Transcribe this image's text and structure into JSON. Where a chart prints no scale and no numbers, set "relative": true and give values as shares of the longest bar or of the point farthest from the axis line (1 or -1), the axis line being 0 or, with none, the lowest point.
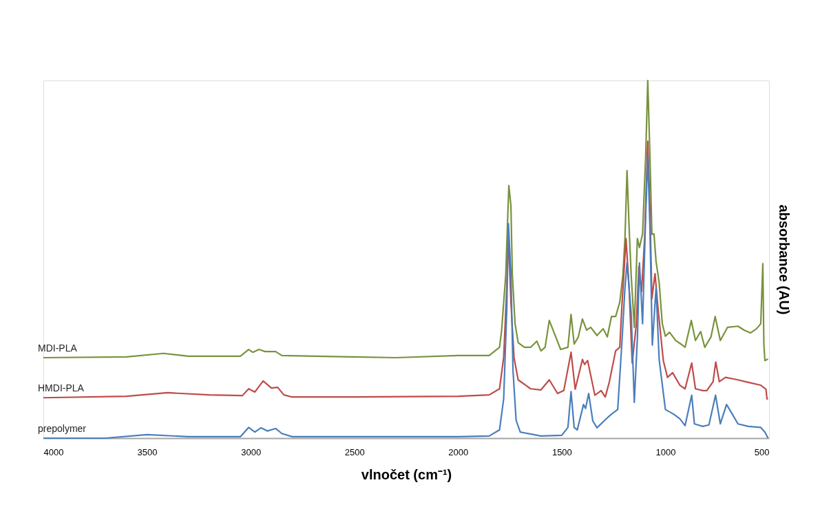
{
  "chart_data": {
    "type": "line",
    "relative": true,
    "xlabel": "vlnočet (cm⁻¹)",
    "ylabel": "absorbance (AU)",
    "xlim": [
      4000,
      500
    ],
    "xticks": [
      4000,
      3500,
      3000,
      2500,
      2000,
      1500,
      1000,
      500
    ],
    "grid": false,
    "line_style": "solid",
    "marker": "none",
    "series": [
      {
        "name": "MDI-PLA",
        "color": "#77933c",
        "x": [
          4000,
          3600,
          3420,
          3300,
          3050,
          3010,
          2990,
          2960,
          2930,
          2880,
          2850,
          2500,
          2300,
          2000,
          1850,
          1800,
          1790,
          1770,
          1760,
          1755,
          1745,
          1738,
          1725,
          1710,
          1680,
          1650,
          1620,
          1600,
          1580,
          1560,
          1530,
          1505,
          1470,
          1455,
          1440,
          1420,
          1400,
          1380,
          1360,
          1330,
          1300,
          1280,
          1260,
          1240,
          1220,
          1205,
          1195,
          1185,
          1175,
          1165,
          1150,
          1135,
          1125,
          1110,
          1095,
          1085,
          1075,
          1065,
          1055,
          1045,
          1030,
          1015,
          1000,
          980,
          950,
          925,
          905,
          875,
          855,
          830,
          810,
          780,
          760,
          735,
          700,
          650,
          620,
          590,
          560,
          540,
          530,
          525,
          520,
          505
        ],
        "values": [
          0.225,
          0.227,
          0.237,
          0.229,
          0.229,
          0.248,
          0.24,
          0.248,
          0.242,
          0.242,
          0.231,
          0.227,
          0.225,
          0.231,
          0.231,
          0.254,
          0.3,
          0.456,
          0.625,
          0.706,
          0.65,
          0.456,
          0.32,
          0.267,
          0.254,
          0.254,
          0.271,
          0.244,
          0.254,
          0.329,
          0.285,
          0.248,
          0.254,
          0.346,
          0.263,
          0.283,
          0.333,
          0.302,
          0.31,
          0.287,
          0.306,
          0.283,
          0.34,
          0.34,
          0.38,
          0.456,
          0.558,
          0.748,
          0.59,
          0.456,
          0.31,
          0.558,
          0.533,
          0.571,
          0.79,
          1.0,
          0.8,
          0.57,
          0.571,
          0.494,
          0.435,
          0.32,
          0.285,
          0.296,
          0.273,
          0.263,
          0.254,
          0.329,
          0.273,
          0.298,
          0.254,
          0.283,
          0.34,
          0.273,
          0.31,
          0.313,
          0.302,
          0.294,
          0.306,
          0.32,
          0.488,
          0.263,
          0.217,
          0.221
        ]
      },
      {
        "name": "HMDI-PLA",
        "color": "#be4b48",
        "x": [
          4000,
          3600,
          3400,
          3200,
          3040,
          3010,
          2980,
          2940,
          2900,
          2870,
          2840,
          2800,
          2500,
          2000,
          1850,
          1800,
          1780,
          1765,
          1757,
          1745,
          1730,
          1710,
          1650,
          1600,
          1560,
          1520,
          1490,
          1455,
          1435,
          1400,
          1390,
          1375,
          1340,
          1310,
          1290,
          1270,
          1240,
          1220,
          1210,
          1190,
          1175,
          1160,
          1140,
          1128,
          1115,
          1100,
          1085,
          1075,
          1065,
          1050,
          1035,
          1010,
          990,
          965,
          930,
          905,
          873,
          855,
          820,
          800,
          770,
          757,
          740,
          710,
          650,
          600,
          540,
          515,
          510,
          505
        ],
        "values": [
          0.113,
          0.117,
          0.127,
          0.121,
          0.119,
          0.138,
          0.129,
          0.16,
          0.14,
          0.142,
          0.121,
          0.115,
          0.115,
          0.117,
          0.121,
          0.138,
          0.225,
          0.42,
          0.57,
          0.38,
          0.225,
          0.163,
          0.138,
          0.135,
          0.163,
          0.125,
          0.133,
          0.24,
          0.137,
          0.22,
          0.206,
          0.217,
          0.12,
          0.133,
          0.115,
          0.158,
          0.244,
          0.254,
          0.367,
          0.558,
          0.42,
          0.21,
          0.32,
          0.48,
          0.41,
          0.56,
          0.83,
          0.65,
          0.39,
          0.46,
          0.36,
          0.217,
          0.17,
          0.183,
          0.148,
          0.138,
          0.21,
          0.138,
          0.133,
          0.133,
          0.158,
          0.213,
          0.158,
          0.17,
          0.163,
          0.156,
          0.148,
          0.137,
          0.11,
          0.11
        ]
      },
      {
        "name": "prepolymer",
        "color": "#4a7ebb",
        "x": [
          4000,
          3700,
          3500,
          3300,
          3050,
          3010,
          2980,
          2950,
          2920,
          2880,
          2850,
          2800,
          2500,
          2000,
          1850,
          1800,
          1780,
          1765,
          1757,
          1745,
          1735,
          1720,
          1700,
          1600,
          1500,
          1470,
          1455,
          1440,
          1425,
          1395,
          1385,
          1370,
          1350,
          1330,
          1274,
          1260,
          1230,
          1210,
          1195,
          1185,
          1165,
          1150,
          1135,
          1125,
          1110,
          1095,
          1085,
          1075,
          1063,
          1045,
          1030,
          1000,
          960,
          930,
          905,
          873,
          860,
          820,
          790,
          758,
          735,
          705,
          680,
          650,
          600,
          540,
          520,
          505
        ],
        "values": [
          0.0,
          0.0,
          0.01,
          0.004,
          0.004,
          0.03,
          0.017,
          0.029,
          0.02,
          0.027,
          0.013,
          0.004,
          0.004,
          0.004,
          0.006,
          0.023,
          0.11,
          0.36,
          0.6,
          0.46,
          0.19,
          0.05,
          0.017,
          0.006,
          0.008,
          0.03,
          0.13,
          0.03,
          0.023,
          0.094,
          0.083,
          0.125,
          0.048,
          0.029,
          0.06,
          0.067,
          0.08,
          0.265,
          0.42,
          0.49,
          0.35,
          0.1,
          0.28,
          0.49,
          0.32,
          0.625,
          0.79,
          0.6,
          0.26,
          0.42,
          0.22,
          0.08,
          0.067,
          0.054,
          0.035,
          0.12,
          0.04,
          0.033,
          0.037,
          0.12,
          0.04,
          0.094,
          0.07,
          0.04,
          0.033,
          0.03,
          0.017,
          0.0
        ]
      }
    ]
  }
}
